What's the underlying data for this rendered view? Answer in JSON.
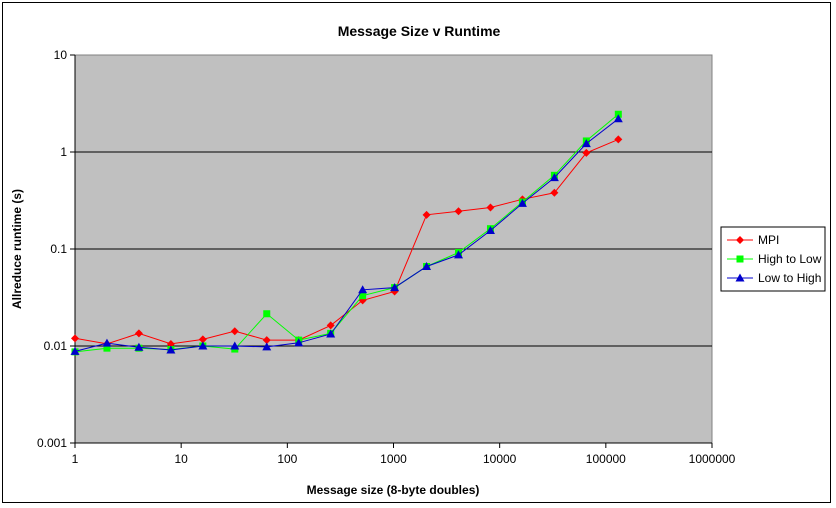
{
  "chart_data": {
    "type": "line",
    "title": "Message Size v Runtime",
    "xlabel": "Message size (8-byte doubles)",
    "ylabel": "Allreduce runtime (s)",
    "x_scale": "log",
    "y_scale": "log",
    "xlim": [
      1,
      1000000
    ],
    "ylim": [
      0.001,
      10
    ],
    "x_ticks": [
      "1",
      "10",
      "100",
      "1000",
      "10000",
      "100000",
      "1000000"
    ],
    "y_ticks": [
      "0.001",
      "0.01",
      "0.1",
      "1",
      "10"
    ],
    "grid": "horizontal major gridlines",
    "plot_background": "#c0c0c0",
    "legend_position": "right",
    "x": [
      1,
      2,
      4,
      8,
      16,
      32,
      64,
      128,
      256,
      512,
      1024,
      2048,
      4096,
      8192,
      16384,
      32768,
      65536,
      131072
    ],
    "series": [
      {
        "name": "MPI",
        "color": "#ff0000",
        "marker": "diamond",
        "values": [
          0.012,
          0.0105,
          0.0135,
          0.0105,
          0.0117,
          0.0142,
          0.0115,
          0.0115,
          0.0163,
          0.0295,
          0.0365,
          0.225,
          0.245,
          0.268,
          0.325,
          0.38,
          0.98,
          1.35
        ]
      },
      {
        "name": "High to Low",
        "color": "#00ff00",
        "marker": "square",
        "values": [
          0.0087,
          0.0095,
          0.0095,
          0.0092,
          0.01,
          0.0093,
          0.0215,
          0.0115,
          0.0135,
          0.033,
          0.04,
          0.066,
          0.092,
          0.162,
          0.305,
          0.575,
          1.3,
          2.45
        ]
      },
      {
        "name": "Low to High",
        "color": "#0000cc",
        "marker": "triangle",
        "values": [
          0.0088,
          0.0107,
          0.0097,
          0.0091,
          0.01,
          0.01,
          0.0098,
          0.0108,
          0.0133,
          0.038,
          0.04,
          0.066,
          0.087,
          0.155,
          0.295,
          0.545,
          1.22,
          2.2
        ]
      }
    ]
  }
}
